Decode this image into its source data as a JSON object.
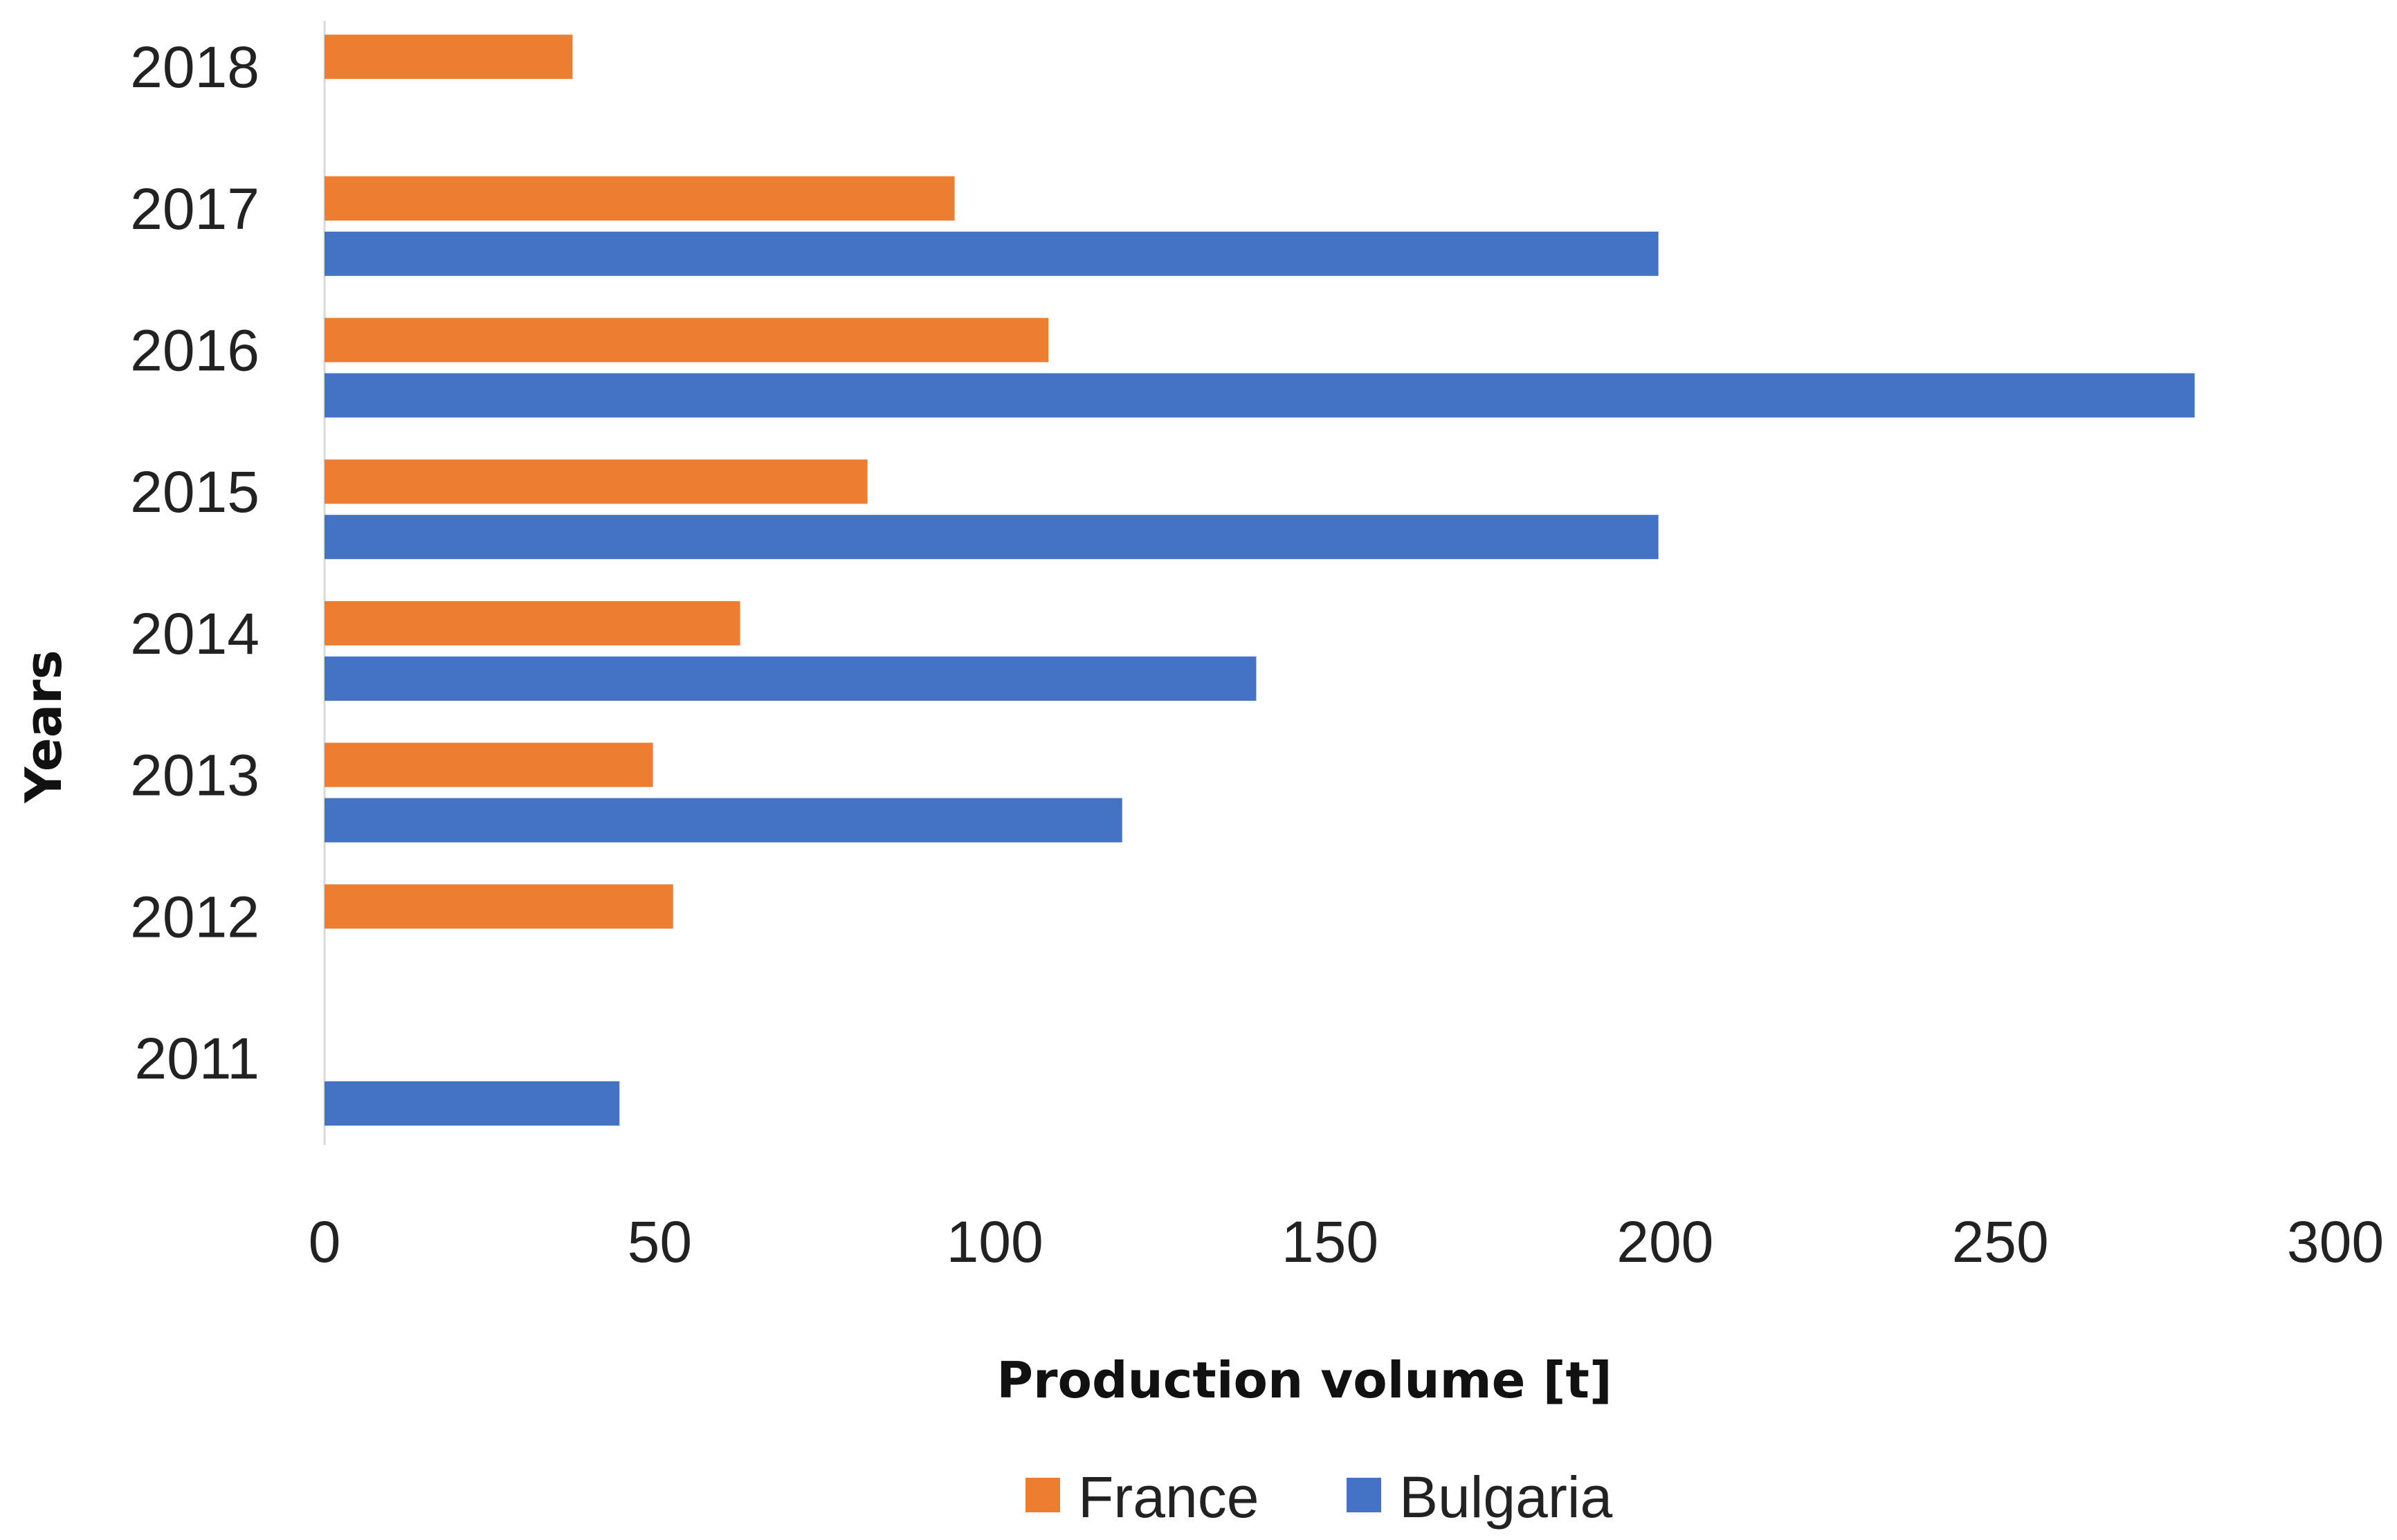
{
  "chart_data": {
    "type": "bar",
    "orientation": "horizontal",
    "title": "",
    "categories": [
      "2011",
      "2012",
      "2013",
      "2014",
      "2015",
      "2016",
      "2017",
      "2018"
    ],
    "series": [
      {
        "name": "France",
        "color": "#ED7D31",
        "values": [
          null,
          52,
          49,
          62,
          81,
          108,
          94,
          37
        ]
      },
      {
        "name": "Bulgaria",
        "color": "#4472C4",
        "values": [
          44,
          null,
          119,
          139,
          199,
          279,
          199,
          null
        ]
      }
    ],
    "xlabel": "Production volume [t]",
    "ylabel": "Years",
    "xlim": [
      0,
      300
    ],
    "xticks": [
      "0",
      "50",
      "100",
      "150",
      "200",
      "250",
      "300"
    ],
    "grid": false,
    "legend": "bottom-center"
  }
}
